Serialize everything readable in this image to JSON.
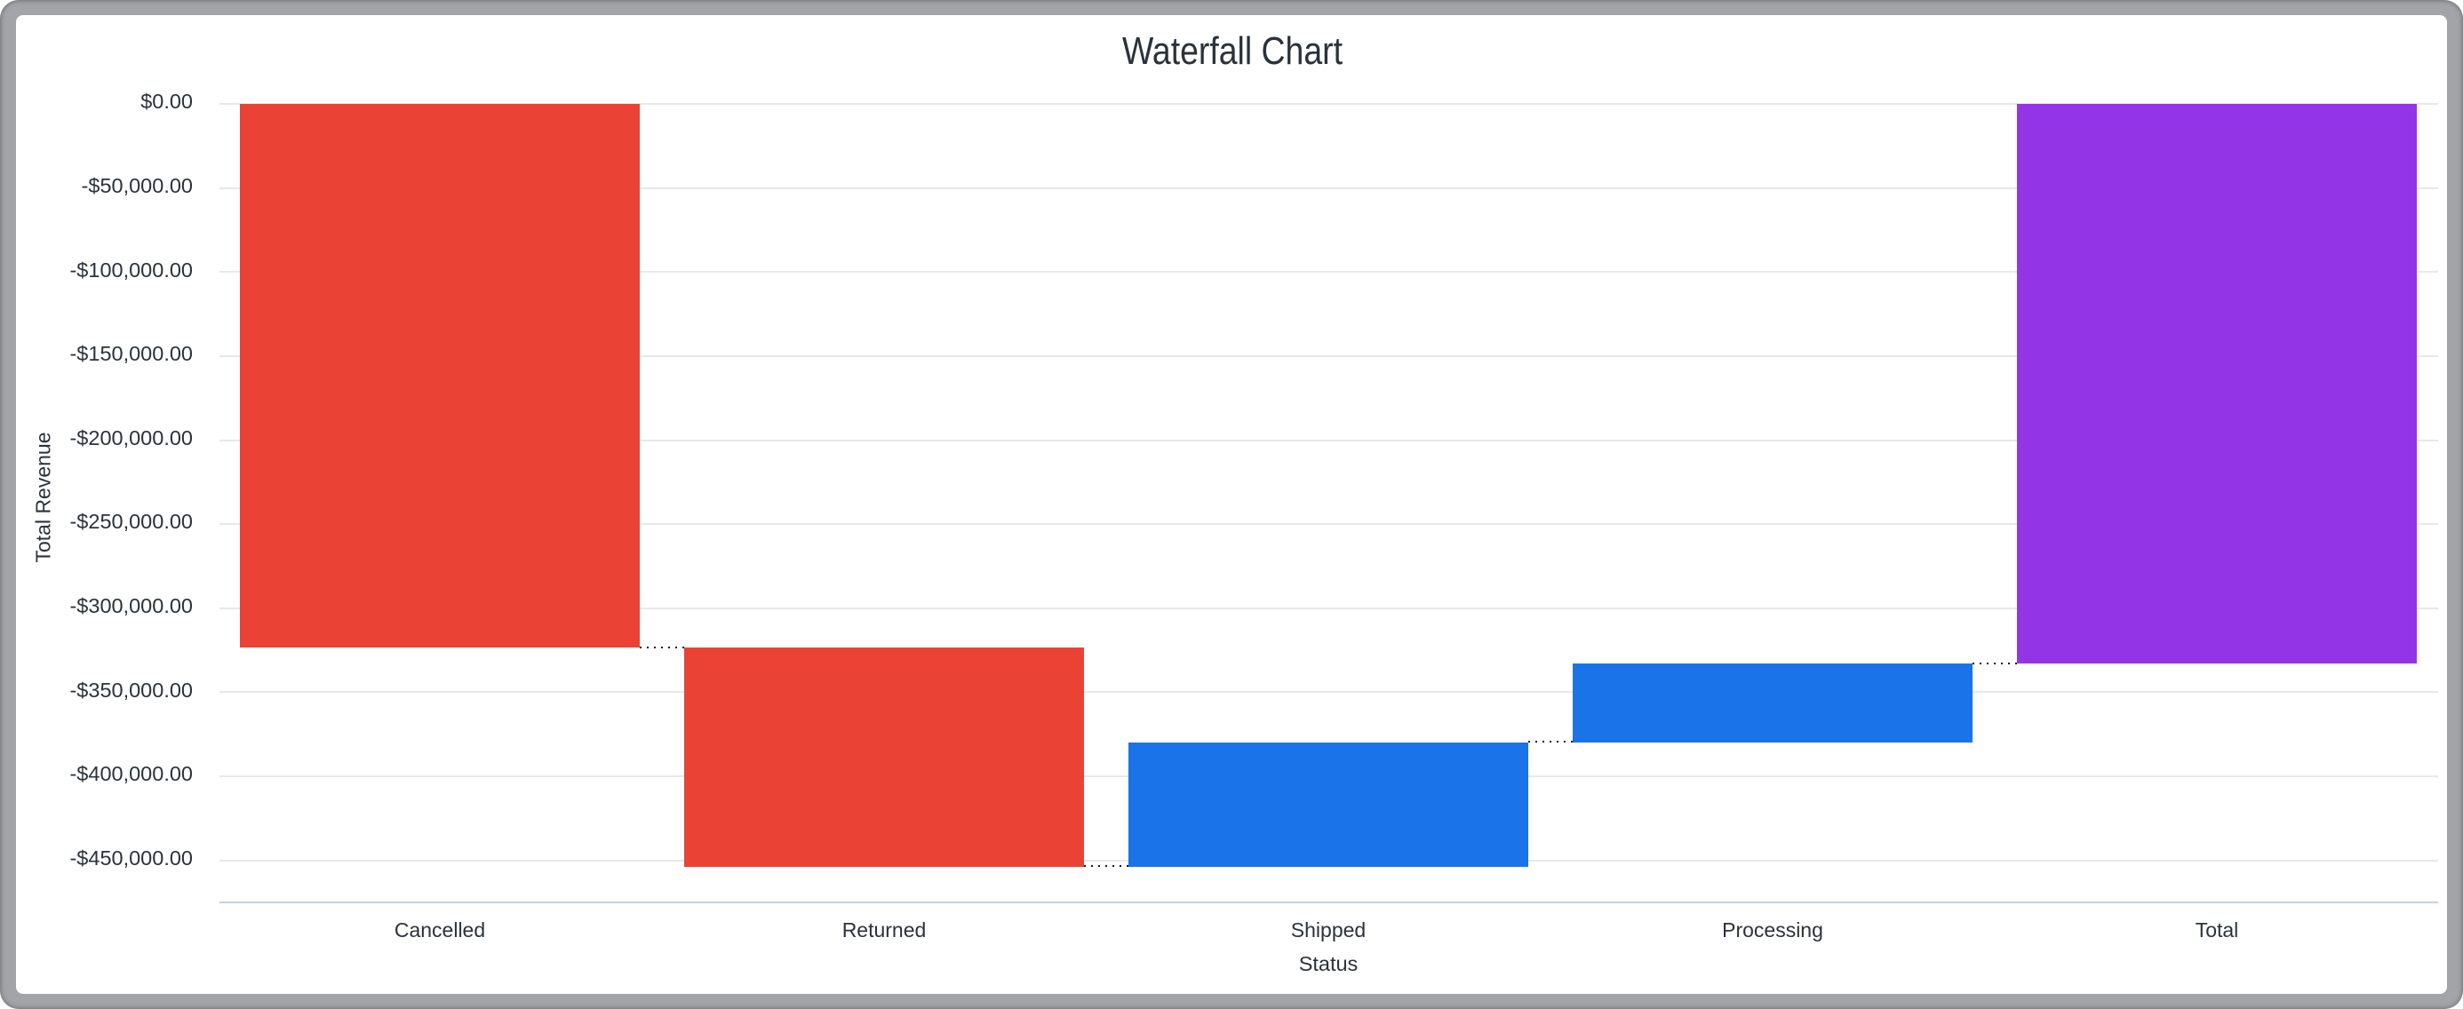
{
  "window": {
    "frame_color": "#a2a4a7",
    "card_color": "#ffffff"
  },
  "chart_data": {
    "type": "waterfall",
    "title": "Waterfall Chart",
    "xlabel": "Status",
    "ylabel": "Total Revenue",
    "categories": [
      "Cancelled",
      "Returned",
      "Shipped",
      "Processing",
      "Total"
    ],
    "series": [
      {
        "name": "Total Revenue",
        "segments": [
          {
            "label": "Cancelled",
            "kind": "decrease",
            "value": -323500,
            "start": 0,
            "end": -323500
          },
          {
            "label": "Returned",
            "kind": "decrease",
            "value": -130300,
            "start": -323500,
            "end": -453800
          },
          {
            "label": "Shipped",
            "kind": "increase",
            "value": 74000,
            "start": -453800,
            "end": -379800
          },
          {
            "label": "Processing",
            "kind": "increase",
            "value": 46800,
            "start": -379800,
            "end": -333000
          },
          {
            "label": "Total",
            "kind": "total",
            "value": -333000,
            "start": 0,
            "end": -333000
          }
        ]
      }
    ],
    "y_ticks": [
      {
        "value": 0,
        "label": "$0.00"
      },
      {
        "value": -50000,
        "label": "-$50,000.00"
      },
      {
        "value": -100000,
        "label": "-$100,000.00"
      },
      {
        "value": -150000,
        "label": "-$150,000.00"
      },
      {
        "value": -200000,
        "label": "-$200,000.00"
      },
      {
        "value": -250000,
        "label": "-$250,000.00"
      },
      {
        "value": -300000,
        "label": "-$300,000.00"
      },
      {
        "value": -350000,
        "label": "-$350,000.00"
      },
      {
        "value": -400000,
        "label": "-$400,000.00"
      },
      {
        "value": -450000,
        "label": "-$450,000.00"
      }
    ],
    "ylim": [
      0,
      -450000
    ],
    "grid": true,
    "legend": "none",
    "colors": {
      "decrease": "#ea4335",
      "increase": "#1a73e8",
      "total": "#9334e6",
      "connector": "#16181c",
      "gridline": "#e8e8e8",
      "axis_line": "#c9d0e4",
      "text": "#2b323a"
    }
  }
}
